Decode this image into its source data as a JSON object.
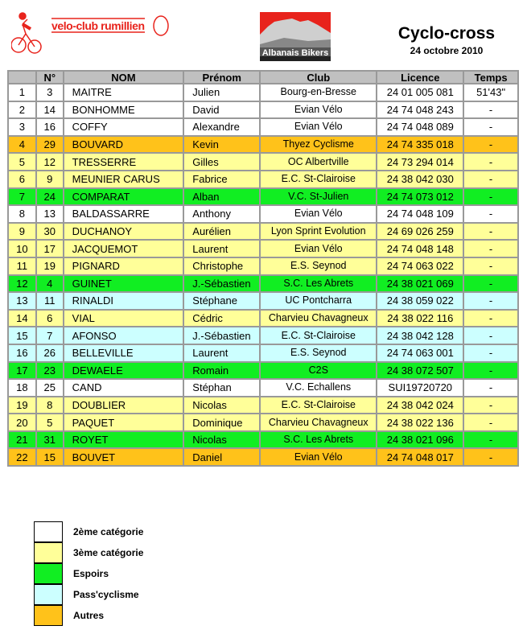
{
  "header": {
    "club_logo_text": "velo-club rumillien",
    "sponsor_logo_text": "Albanais Bikers",
    "title": "Cyclo-cross",
    "date": "24 octobre 2010"
  },
  "colors": {
    "w": "#ffffff",
    "y": "#ffff99",
    "g": "#11ee22",
    "c": "#ccffff",
    "o": "#ffc21a"
  },
  "table": {
    "columns": [
      "",
      "N°",
      "NOM",
      "Prénom",
      "Club",
      "Licence",
      "Temps"
    ],
    "rows": [
      {
        "cat": "w",
        "cells": [
          "1",
          "3",
          "MAITRE",
          "Julien",
          "Bourg-en-Bresse",
          "24 01 005 081",
          "51'43\""
        ]
      },
      {
        "cat": "w",
        "cells": [
          "2",
          "14",
          "BONHOMME",
          "David",
          "Evian Vélo",
          "24 74 048 243",
          "-"
        ]
      },
      {
        "cat": "w",
        "cells": [
          "3",
          "16",
          "COFFY",
          "Alexandre",
          "Evian Vélo",
          "24 74 048 089",
          "-"
        ]
      },
      {
        "cat": "o",
        "cells": [
          "4",
          "29",
          "BOUVARD",
          "Kevin",
          "Thyez Cyclisme",
          "24 74 335 018",
          "-"
        ]
      },
      {
        "cat": "y",
        "cells": [
          "5",
          "12",
          "TRESSERRE",
          "Gilles",
          "OC Albertville",
          "24 73 294 014",
          "-"
        ]
      },
      {
        "cat": "y",
        "cells": [
          "6",
          "9",
          "MEUNIER CARUS",
          "Fabrice",
          "E.C. St-Clairoise",
          "24 38 042 030",
          "-"
        ]
      },
      {
        "cat": "g",
        "cells": [
          "7",
          "24",
          "COMPARAT",
          "Alban",
          "V.C. St-Julien",
          "24 74 073 012",
          "-"
        ]
      },
      {
        "cat": "w",
        "cells": [
          "8",
          "13",
          "BALDASSARRE",
          "Anthony",
          "Evian Vélo",
          "24 74 048 109",
          "-"
        ]
      },
      {
        "cat": "y",
        "cells": [
          "9",
          "30",
          "DUCHANOY",
          "Aurélien",
          "Lyon Sprint Evolution",
          "24 69 026 259",
          "-"
        ]
      },
      {
        "cat": "y",
        "cells": [
          "10",
          "17",
          "JACQUEMOT",
          "Laurent",
          "Evian Vélo",
          "24 74 048 148",
          "-"
        ]
      },
      {
        "cat": "y",
        "cells": [
          "11",
          "19",
          "PIGNARD",
          "Christophe",
          "E.S. Seynod",
          "24 74 063 022",
          "-"
        ]
      },
      {
        "cat": "g",
        "cells": [
          "12",
          "4",
          "GUINET",
          "J.-Sébastien",
          "S.C. Les Abrets",
          "24 38 021 069",
          "-"
        ]
      },
      {
        "cat": "c",
        "cells": [
          "13",
          "11",
          "RINALDI",
          "Stéphane",
          "UC Pontcharra",
          "24 38 059 022",
          "-"
        ]
      },
      {
        "cat": "y",
        "cells": [
          "14",
          "6",
          "VIAL",
          "Cédric",
          "Charvieu Chavagneux",
          "24 38 022 116",
          "-"
        ]
      },
      {
        "cat": "c",
        "cells": [
          "15",
          "7",
          "AFONSO",
          "J.-Sébastien",
          "E.C. St-Clairoise",
          "24 38 042 128",
          "-"
        ]
      },
      {
        "cat": "c",
        "cells": [
          "16",
          "26",
          "BELLEVILLE",
          "Laurent",
          "E.S. Seynod",
          "24 74 063 001",
          "-"
        ]
      },
      {
        "cat": "g",
        "cells": [
          "17",
          "23",
          "DEWAELE",
          "Romain",
          "C2S",
          "24 38 072 507",
          "-"
        ]
      },
      {
        "cat": "w",
        "cells": [
          "18",
          "25",
          "CAND",
          "Stéphan",
          "V.C. Echallens",
          "SUI19720720",
          "-"
        ]
      },
      {
        "cat": "y",
        "cells": [
          "19",
          "8",
          "DOUBLIER",
          "Nicolas",
          "E.C. St-Clairoise",
          "24 38 042 024",
          "-"
        ]
      },
      {
        "cat": "y",
        "cells": [
          "20",
          "5",
          "PAQUET",
          "Dominique",
          "Charvieu Chavagneux",
          "24 38 022 136",
          "-"
        ]
      },
      {
        "cat": "g",
        "cells": [
          "21",
          "31",
          "ROYET",
          "Nicolas",
          "S.C. Les Abrets",
          "24 38 021 096",
          "-"
        ]
      },
      {
        "cat": "o",
        "cells": [
          "22",
          "15",
          "BOUVET",
          "Daniel",
          "Evian Vélo",
          "24 74 048 017",
          "-"
        ]
      }
    ]
  },
  "legend": [
    {
      "cat": "w",
      "label": "2ème catégorie"
    },
    {
      "cat": "y",
      "label": "3ème catégorie"
    },
    {
      "cat": "g",
      "label": "Espoirs"
    },
    {
      "cat": "c",
      "label": "Pass'cyclisme"
    },
    {
      "cat": "o",
      "label": "Autres"
    }
  ]
}
